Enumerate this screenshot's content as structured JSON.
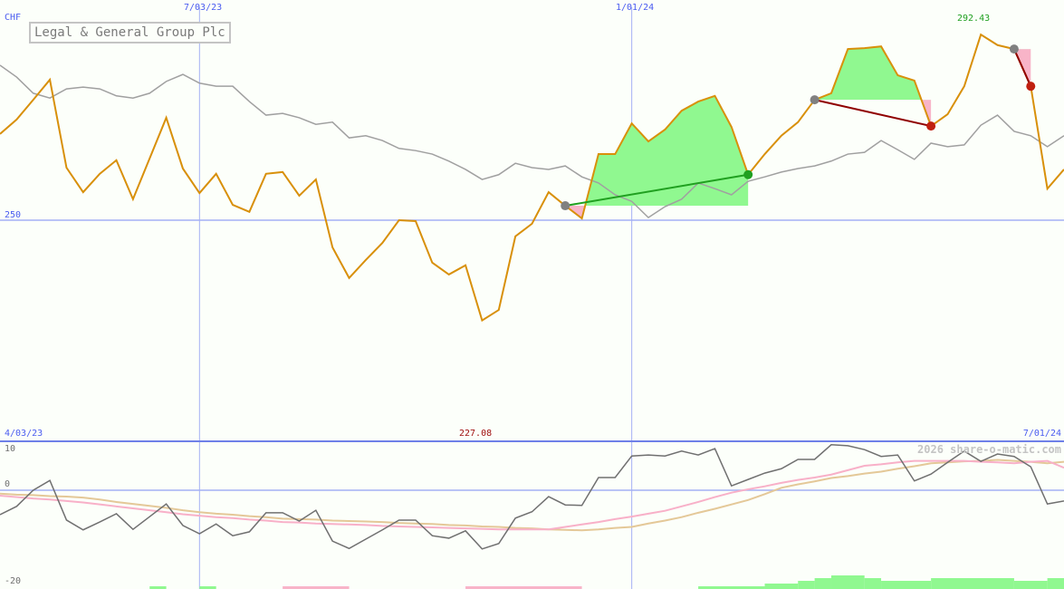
{
  "chart_data": {
    "type": "line",
    "title": "Legal & General Group Plc",
    "currency_label": "CHF",
    "x_tick_labels": {
      "top": [
        "7/03/23",
        "1/01/24"
      ],
      "bottom_left": "4/03/23",
      "bottom_right": "7/01/24"
    },
    "price_axis": {
      "reference_label": "250",
      "reference_value": 250
    },
    "annotations": {
      "max_label": "292.43",
      "max_value": 292.43,
      "min_label": "227.08",
      "min_value": 227.08
    },
    "watermark": "2026 share-o-matic.com",
    "dates": [
      "2023-04-10",
      "2023-04-17",
      "2023-04-24",
      "2023-05-01",
      "2023-05-08",
      "2023-05-15",
      "2023-05-22",
      "2023-05-29",
      "2023-06-05",
      "2023-06-12",
      "2023-06-19",
      "2023-06-26",
      "2023-07-03",
      "2023-07-10",
      "2023-07-17",
      "2023-07-24",
      "2023-07-31",
      "2023-08-07",
      "2023-08-14",
      "2023-08-21",
      "2023-08-28",
      "2023-09-04",
      "2023-09-11",
      "2023-09-18",
      "2023-09-25",
      "2023-10-02",
      "2023-10-09",
      "2023-10-16",
      "2023-10-23",
      "2023-10-30",
      "2023-11-06",
      "2023-11-13",
      "2023-11-20",
      "2023-11-27",
      "2023-12-04",
      "2023-12-11",
      "2023-12-18",
      "2023-12-25",
      "2024-01-01",
      "2024-01-08",
      "2024-01-15",
      "2024-01-22",
      "2024-01-29",
      "2024-02-05",
      "2024-02-12",
      "2024-02-19",
      "2024-02-26",
      "2024-03-04",
      "2024-03-11",
      "2024-03-18",
      "2024-03-25",
      "2024-04-01",
      "2024-04-08",
      "2024-04-15",
      "2024-04-22",
      "2024-04-29",
      "2024-05-06",
      "2024-05-13",
      "2024-05-20",
      "2024-05-27",
      "2024-06-03",
      "2024-06-10",
      "2024-06-17",
      "2024-06-24",
      "2024-07-01"
    ],
    "series": [
      {
        "role": "price",
        "color": "#d8900a",
        "values": [
          269.7,
          273.0,
          277.5,
          282.1,
          262.0,
          256.4,
          260.6,
          263.7,
          254.8,
          264.1,
          273.4,
          261.8,
          256.2,
          260.6,
          253.5,
          251.9,
          260.6,
          261.0,
          255.6,
          259.3,
          243.8,
          236.8,
          240.9,
          244.8,
          250.0,
          249.8,
          240.3,
          237.6,
          239.7,
          227.1,
          229.5,
          246.3,
          249.2,
          256.4,
          253.3,
          250.4,
          265.1,
          265.1,
          272.1,
          268.0,
          270.7,
          275.0,
          277.1,
          278.4,
          271.3,
          260.4,
          265.1,
          269.3,
          272.4,
          277.5,
          279.0,
          289.1,
          289.3,
          289.7,
          283.1,
          281.9,
          271.5,
          274.2,
          280.6,
          292.4,
          290.0,
          289.1,
          280.6,
          257.2,
          261.6
        ]
      },
      {
        "role": "comparison",
        "color": "#a0a0a0",
        "values": [
          285.4,
          282.7,
          279.0,
          277.9,
          280.0,
          280.4,
          280.0,
          278.4,
          277.9,
          279.0,
          281.7,
          283.3,
          281.3,
          280.6,
          280.6,
          277.1,
          274.0,
          274.4,
          273.4,
          271.9,
          272.4,
          268.8,
          269.3,
          268.2,
          266.4,
          265.9,
          265.1,
          263.5,
          261.6,
          259.3,
          260.4,
          263.0,
          262.0,
          261.6,
          262.4,
          259.9,
          258.5,
          255.8,
          254.3,
          250.6,
          253.1,
          254.8,
          258.5,
          257.2,
          255.8,
          258.9,
          259.9,
          261.0,
          261.8,
          262.4,
          263.5,
          265.1,
          265.5,
          268.2,
          266.1,
          263.9,
          267.6,
          266.8,
          267.2,
          271.7,
          274.0,
          270.3,
          269.3,
          266.8,
          269.3
        ]
      }
    ],
    "trades": [
      {
        "entry_index": 34,
        "exit_index": 45,
        "result": "gain",
        "line_color": "#20a020"
      },
      {
        "entry_index": 49,
        "exit_index": 56,
        "result": "loss",
        "line_color": "#900000"
      },
      {
        "entry_index": 61,
        "exit_index": 62,
        "result": "loss",
        "line_color": "#900000"
      }
    ],
    "fill_colors": {
      "above_entry": "#90f890",
      "below_entry": "#f8b4c8",
      "entry_marker": "#808080",
      "gain_marker": "#20a020",
      "loss_marker": "#c02010"
    },
    "indicator": {
      "tick_labels": [
        "10",
        "0",
        "-20"
      ],
      "tick_values": [
        10,
        0,
        -20
      ],
      "series": [
        {
          "role": "momentum",
          "color": "#707070",
          "values": [
            -5.0,
            -3.3,
            0,
            2.0,
            -6.1,
            -8.1,
            -6.5,
            -4.8,
            -8.0,
            -5.4,
            -2.8,
            -7.2,
            -8.9,
            -6.9,
            -9.3,
            -8.5,
            -4.6,
            -4.6,
            -6.3,
            -4.1,
            -10.4,
            -11.9,
            -10.0,
            -8.1,
            -6.1,
            -6.1,
            -9.3,
            -9.8,
            -8.3,
            -12.0,
            -10.9,
            -5.7,
            -4.4,
            -1.3,
            -3.0,
            -3.1,
            2.6,
            2.6,
            7.0,
            7.2,
            7.0,
            8.0,
            7.2,
            8.5,
            0.9,
            2.2,
            3.5,
            4.4,
            6.3,
            6.3,
            9.3,
            9.1,
            8.3,
            6.9,
            7.2,
            1.9,
            3.3,
            5.7,
            8.0,
            5.9,
            7.4,
            6.9,
            4.8,
            -2.8,
            -2.2
          ]
        },
        {
          "role": "signal-fast",
          "color": "#f8b0c8",
          "values": [
            -1.1,
            -1.4,
            -1.7,
            -1.9,
            -2.2,
            -2.5,
            -2.9,
            -3.3,
            -3.7,
            -4.1,
            -4.5,
            -4.9,
            -5.2,
            -5.5,
            -5.7,
            -6.0,
            -6.2,
            -6.5,
            -6.6,
            -6.8,
            -6.9,
            -7.0,
            -7.1,
            -7.3,
            -7.4,
            -7.5,
            -7.6,
            -7.7,
            -7.8,
            -7.9,
            -8.0,
            -8.0,
            -8.0,
            -8.0,
            -7.5,
            -7.0,
            -6.5,
            -5.9,
            -5.4,
            -4.8,
            -4.2,
            -3.3,
            -2.4,
            -1.4,
            -0.5,
            0.2,
            0.8,
            1.5,
            2.1,
            2.6,
            3.2,
            4.1,
            5.0,
            5.3,
            5.7,
            6.0,
            6.0,
            6.0,
            6.0,
            5.8,
            5.7,
            5.5,
            5.8,
            6.0,
            4.6
          ]
        },
        {
          "role": "signal-slow",
          "color": "#e4c898",
          "values": [
            -0.7,
            -0.9,
            -1.0,
            -1.2,
            -1.3,
            -1.5,
            -1.9,
            -2.4,
            -2.8,
            -3.2,
            -3.6,
            -4.1,
            -4.5,
            -4.8,
            -5.0,
            -5.3,
            -5.5,
            -5.8,
            -5.9,
            -6.0,
            -6.2,
            -6.3,
            -6.4,
            -6.5,
            -6.7,
            -6.8,
            -6.9,
            -7.1,
            -7.2,
            -7.4,
            -7.5,
            -7.7,
            -7.8,
            -8.0,
            -8.1,
            -8.2,
            -8.0,
            -7.7,
            -7.5,
            -6.8,
            -6.2,
            -5.5,
            -4.6,
            -3.8,
            -2.9,
            -2.0,
            -0.8,
            0.5,
            1.2,
            1.8,
            2.5,
            2.9,
            3.4,
            3.8,
            4.4,
            4.9,
            5.5,
            5.7,
            5.9,
            6.0,
            6.2,
            6.0,
            5.8,
            5.5,
            5.8
          ]
        }
      ],
      "histogram": [
        {
          "from_index": 9,
          "to_index": 10,
          "value": 1
        },
        {
          "from_index": 12,
          "to_index": 13,
          "value": 1
        },
        {
          "from_index": 17,
          "to_index": 21,
          "value": -1
        },
        {
          "from_index": 28,
          "to_index": 35,
          "value": -1
        },
        {
          "from_index": 42,
          "to_index": 46,
          "value": 1
        },
        {
          "from_index": 46,
          "to_index": 48,
          "value": 2
        },
        {
          "from_index": 48,
          "to_index": 49,
          "value": 3
        },
        {
          "from_index": 49,
          "to_index": 50,
          "value": 4
        },
        {
          "from_index": 50,
          "to_index": 52,
          "value": 5
        },
        {
          "from_index": 52,
          "to_index": 53,
          "value": 4
        },
        {
          "from_index": 53,
          "to_index": 56,
          "value": 3
        },
        {
          "from_index": 56,
          "to_index": 61,
          "value": 4
        },
        {
          "from_index": 61,
          "to_index": 63,
          "value": 3
        },
        {
          "from_index": 63,
          "to_index": 64,
          "value": 4
        }
      ]
    }
  }
}
